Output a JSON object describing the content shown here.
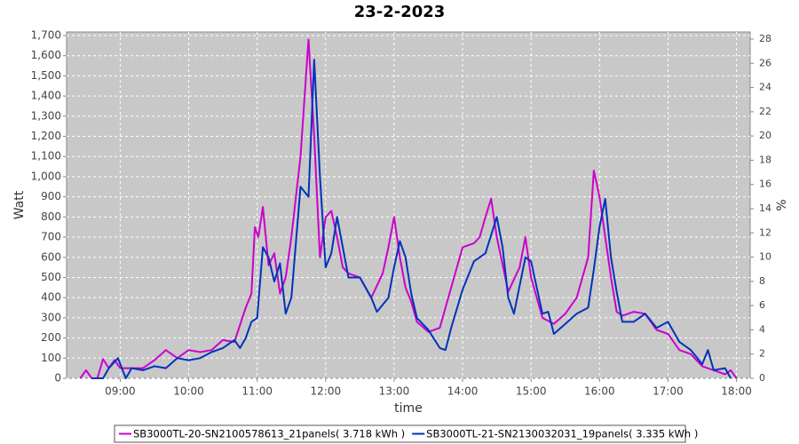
{
  "chart_data": {
    "type": "line",
    "title": "23-2-2023",
    "xlabel": "time",
    "ylabel": "Watt",
    "y2label": "%",
    "xlim": [
      "08:13",
      "18:12"
    ],
    "xticks": [
      "09:00",
      "10:00",
      "11:00",
      "12:00",
      "13:00",
      "14:00",
      "15:00",
      "16:00",
      "17:00",
      "18:00"
    ],
    "ylim": [
      0,
      1700
    ],
    "yticks": [
      0,
      100,
      200,
      300,
      400,
      500,
      600,
      700,
      800,
      900,
      {
        "value": 1000,
        "label": "1,000"
      },
      {
        "value": 1100,
        "label": "1,100"
      },
      {
        "value": 1200,
        "label": "1,200"
      },
      {
        "value": 1300,
        "label": "1,300"
      },
      {
        "value": 1400,
        "label": "1,400"
      },
      {
        "value": 1500,
        "label": "1,500"
      },
      {
        "value": 1600,
        "label": "1,600"
      },
      {
        "value": 1700,
        "label": "1,700"
      }
    ],
    "y2lim": [
      0,
      28
    ],
    "y2ticks": [
      0,
      2,
      4,
      6,
      8,
      10,
      12,
      14,
      16,
      18,
      20,
      22,
      24,
      26,
      28
    ],
    "grid": true,
    "series": [
      {
        "name": "SB3000TL-20-SN2100578613_21panels( 3.718 kWh )",
        "color": "#cc00cc",
        "x": [
          "08:25",
          "08:30",
          "08:35",
          "08:40",
          "08:45",
          "08:50",
          "08:55",
          "09:00",
          "09:10",
          "09:20",
          "09:30",
          "09:40",
          "09:50",
          "10:00",
          "10:10",
          "10:20",
          "10:30",
          "10:40",
          "10:50",
          "10:55",
          "10:58",
          "11:01",
          "11:05",
          "11:10",
          "11:15",
          "11:20",
          "11:25",
          "11:30",
          "11:38",
          "11:45",
          "11:50",
          "11:55",
          "12:00",
          "12:05",
          "12:10",
          "12:15",
          "12:20",
          "12:30",
          "12:40",
          "12:50",
          "12:55",
          "13:00",
          "13:05",
          "13:10",
          "13:15",
          "13:20",
          "13:30",
          "13:40",
          "13:50",
          "14:00",
          "14:10",
          "14:15",
          "14:20",
          "14:25",
          "14:30",
          "14:40",
          "14:50",
          "14:55",
          "15:00",
          "15:10",
          "15:20",
          "15:30",
          "15:40",
          "15:50",
          "15:55",
          "16:00",
          "16:10",
          "16:15",
          "16:20",
          "16:30",
          "16:40",
          "16:50",
          "17:00",
          "17:10",
          "17:20",
          "17:30",
          "17:40",
          "17:50",
          "17:55",
          "18:00"
        ],
        "values": [
          0,
          40,
          0,
          0,
          95,
          50,
          90,
          50,
          50,
          50,
          90,
          140,
          100,
          140,
          130,
          140,
          190,
          180,
          350,
          420,
          750,
          700,
          850,
          560,
          620,
          420,
          500,
          700,
          1100,
          1680,
          1200,
          600,
          800,
          830,
          700,
          550,
          520,
          500,
          400,
          520,
          650,
          800,
          600,
          450,
          380,
          280,
          230,
          250,
          450,
          650,
          670,
          700,
          800,
          890,
          700,
          430,
          550,
          700,
          500,
          300,
          270,
          320,
          400,
          600,
          1030,
          900,
          500,
          330,
          310,
          330,
          320,
          240,
          220,
          140,
          120,
          60,
          40,
          20,
          40,
          0
        ]
      },
      {
        "name": "SB3000TL-21-SN2130032031_19panels( 3.335 kWh )",
        "color": "#0033bb",
        "x": [
          "08:35",
          "08:45",
          "08:50",
          "08:58",
          "09:05",
          "09:10",
          "09:20",
          "09:30",
          "09:40",
          "09:50",
          "10:00",
          "10:10",
          "10:20",
          "10:30",
          "10:40",
          "10:45",
          "10:50",
          "10:55",
          "11:00",
          "11:05",
          "11:10",
          "11:15",
          "11:20",
          "11:25",
          "11:30",
          "11:38",
          "11:45",
          "11:50",
          "11:55",
          "12:00",
          "12:05",
          "12:10",
          "12:15",
          "12:20",
          "12:30",
          "12:40",
          "12:45",
          "12:55",
          "13:00",
          "13:05",
          "13:10",
          "13:15",
          "13:20",
          "13:30",
          "13:40",
          "13:45",
          "13:50",
          "14:00",
          "14:10",
          "14:20",
          "14:30",
          "14:35",
          "14:40",
          "14:45",
          "14:55",
          "15:00",
          "15:10",
          "15:15",
          "15:20",
          "15:30",
          "15:40",
          "15:50",
          "15:55",
          "16:00",
          "16:05",
          "16:10",
          "16:15",
          "16:20",
          "16:30",
          "16:40",
          "16:50",
          "17:00",
          "17:10",
          "17:20",
          "17:30",
          "17:35",
          "17:40",
          "17:50",
          "17:55"
        ],
        "values": [
          0,
          0,
          50,
          100,
          0,
          50,
          40,
          60,
          50,
          100,
          90,
          100,
          130,
          150,
          190,
          150,
          200,
          280,
          300,
          650,
          600,
          480,
          570,
          320,
          400,
          950,
          900,
          1580,
          1000,
          550,
          620,
          800,
          650,
          500,
          500,
          400,
          330,
          400,
          550,
          680,
          600,
          420,
          300,
          240,
          150,
          140,
          250,
          440,
          580,
          620,
          800,
          650,
          400,
          320,
          600,
          580,
          320,
          330,
          220,
          270,
          320,
          350,
          540,
          750,
          890,
          600,
          430,
          280,
          280,
          320,
          250,
          280,
          180,
          140,
          70,
          140,
          40,
          50,
          0
        ]
      }
    ]
  }
}
